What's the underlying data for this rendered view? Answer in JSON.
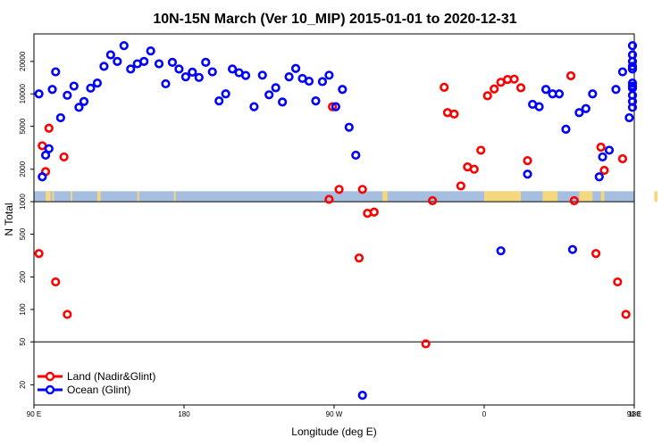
{
  "chart_data": {
    "type": "scatter",
    "title": "10N-15N March (Ver 10_MIP)   2015-01-01 to 2020-12-31",
    "xlabel": "Longitude (deg E)",
    "ylabel": "N Total",
    "x_scale": "longitude, wrapped from 90 E through 180 and back to 180",
    "y_scale": "log",
    "xlim": [
      90,
      450
    ],
    "ylim": [
      13,
      36000
    ],
    "x_ticks": [
      {
        "value": 90,
        "label": "90 E"
      },
      {
        "value": 180,
        "label": "180"
      },
      {
        "value": 270,
        "label": "90 W"
      },
      {
        "value": 360,
        "label": "0"
      },
      {
        "value": 450,
        "label": "90 E"
      },
      {
        "value": 540,
        "label": "180"
      }
    ],
    "y_ticks": [
      {
        "value": 20,
        "label": "20"
      },
      {
        "value": 50,
        "label": "50"
      },
      {
        "value": 100,
        "label": "100"
      },
      {
        "value": 200,
        "label": "200"
      },
      {
        "value": 500,
        "label": "500"
      },
      {
        "value": 1000,
        "label": "1000"
      },
      {
        "value": 2000,
        "label": "2000"
      },
      {
        "value": 5000,
        "label": "5000"
      },
      {
        "value": 10000,
        "label": "10000"
      },
      {
        "value": 20000,
        "label": "20000"
      }
    ],
    "reference_lines": [
      1000,
      50
    ],
    "map_strip": {
      "y_from": 1000,
      "y_to": 1250,
      "ocean_color": "#a6bedf",
      "land_color": "#f5d77e",
      "land_x": [
        [
          97,
          100
        ],
        [
          101,
          102
        ],
        [
          112,
          113
        ],
        [
          128,
          130
        ],
        [
          152,
          153
        ],
        [
          174,
          175
        ],
        [
          299,
          302
        ],
        [
          360,
          382
        ],
        [
          395,
          404
        ],
        [
          417,
          425
        ],
        [
          430,
          432
        ],
        [
          462,
          464
        ]
      ]
    },
    "legend": {
      "position": "bottom-left"
    },
    "series": [
      {
        "name": "Land (Nadir&Glint)",
        "color": "#ff0000",
        "points": [
          [
            93,
            330
          ],
          [
            95,
            3300
          ],
          [
            97,
            1900
          ],
          [
            99,
            4800
          ],
          [
            103,
            180
          ],
          [
            108,
            2600
          ],
          [
            110,
            90
          ],
          [
            267,
            1050
          ],
          [
            269,
            7600
          ],
          [
            273,
            1300
          ],
          [
            285,
            300
          ],
          [
            287,
            1300
          ],
          [
            290,
            780
          ],
          [
            294,
            800
          ],
          [
            325,
            48
          ],
          [
            329,
            1020
          ],
          [
            336,
            11500
          ],
          [
            338,
            6700
          ],
          [
            342,
            6500
          ],
          [
            346,
            1400
          ],
          [
            350,
            2100
          ],
          [
            354,
            2000
          ],
          [
            358,
            3000
          ],
          [
            362,
            9600
          ],
          [
            366,
            11100
          ],
          [
            370,
            12800
          ],
          [
            374,
            13600
          ],
          [
            378,
            13700
          ],
          [
            382,
            11400
          ],
          [
            386,
            2400
          ],
          [
            412,
            14700
          ],
          [
            414,
            1020
          ],
          [
            427,
            330
          ],
          [
            430,
            3200
          ],
          [
            432,
            1950
          ],
          [
            440,
            180
          ],
          [
            443,
            2500
          ],
          [
            445,
            90
          ]
        ]
      },
      {
        "name": "Ocean (Glint)",
        "color": "#0000ff",
        "points": [
          [
            93,
            10000
          ],
          [
            95,
            1700
          ],
          [
            97,
            2700
          ],
          [
            99,
            3100
          ],
          [
            101,
            11000
          ],
          [
            103,
            16000
          ],
          [
            106,
            6000
          ],
          [
            110,
            9700
          ],
          [
            114,
            11800
          ],
          [
            117,
            7500
          ],
          [
            120,
            8500
          ],
          [
            124,
            11300
          ],
          [
            128,
            12600
          ],
          [
            132,
            18000
          ],
          [
            136,
            23000
          ],
          [
            140,
            20000
          ],
          [
            144,
            28000
          ],
          [
            148,
            17000
          ],
          [
            152,
            19000
          ],
          [
            156,
            20000
          ],
          [
            160,
            25000
          ],
          [
            165,
            19000
          ],
          [
            169,
            12400
          ],
          [
            173,
            19600
          ],
          [
            177,
            17000
          ],
          [
            181,
            14400
          ],
          [
            185,
            15900
          ],
          [
            189,
            14200
          ],
          [
            193,
            19600
          ],
          [
            197,
            16000
          ],
          [
            201,
            8600
          ],
          [
            205,
            10000
          ],
          [
            209,
            17000
          ],
          [
            213,
            15700
          ],
          [
            217,
            14800
          ],
          [
            222,
            7600
          ],
          [
            227,
            14900
          ],
          [
            231,
            9800
          ],
          [
            235,
            11400
          ],
          [
            239,
            8400
          ],
          [
            243,
            14400
          ],
          [
            247,
            17200
          ],
          [
            251,
            13900
          ],
          [
            255,
            13100
          ],
          [
            259,
            8600
          ],
          [
            263,
            13000
          ],
          [
            267,
            14900
          ],
          [
            271,
            7600
          ],
          [
            275,
            11000
          ],
          [
            279,
            4900
          ],
          [
            283,
            2700
          ],
          [
            287,
            16
          ],
          [
            370,
            350
          ],
          [
            386,
            1800
          ],
          [
            389,
            8000
          ],
          [
            393,
            7600
          ],
          [
            397,
            11000
          ],
          [
            401,
            10000
          ],
          [
            405,
            10000
          ],
          [
            409,
            4700
          ],
          [
            413,
            360
          ],
          [
            417,
            6700
          ],
          [
            421,
            7300
          ],
          [
            425,
            10000
          ],
          [
            429,
            1700
          ],
          [
            431,
            2600
          ],
          [
            435,
            3000
          ],
          [
            439,
            11000
          ],
          [
            443,
            16000
          ],
          [
            447,
            6000
          ],
          [
            451,
            9700
          ],
          [
            455,
            11800
          ],
          [
            459,
            7500
          ],
          [
            463,
            8500
          ],
          [
            467,
            11300
          ],
          [
            471,
            12600
          ],
          [
            475,
            18000
          ],
          [
            479,
            23000
          ],
          [
            483,
            20000
          ],
          [
            487,
            28000
          ],
          [
            490,
            17000
          ]
        ]
      }
    ]
  }
}
